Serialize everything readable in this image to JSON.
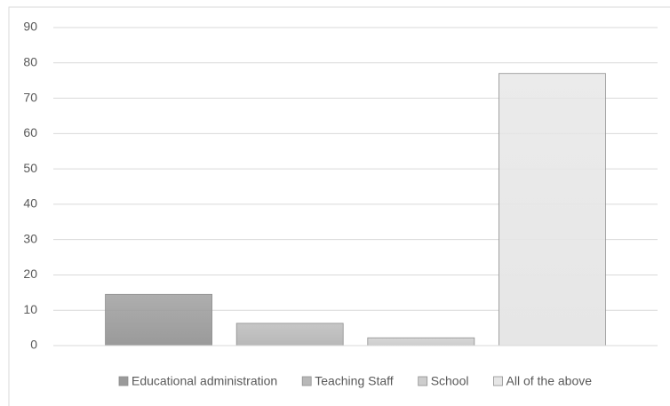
{
  "chart_data": {
    "type": "bar",
    "categories": [
      null
    ],
    "series": [
      {
        "name": "Educational administration",
        "color": "#9a9a9a",
        "values": [
          14.5
        ]
      },
      {
        "name": "Teaching Staff",
        "color": "#b8b8b8",
        "values": [
          6.3
        ]
      },
      {
        "name": "School",
        "color": "#cdcdcd",
        "values": [
          2.2
        ]
      },
      {
        "name": "All of the above",
        "color": "#e6e6e6",
        "values": [
          77
        ]
      }
    ],
    "ylim": [
      0,
      90
    ],
    "yticks": [
      0,
      10,
      20,
      30,
      40,
      50,
      60,
      70,
      80,
      90
    ],
    "grid": true,
    "legend": "bottom"
  }
}
